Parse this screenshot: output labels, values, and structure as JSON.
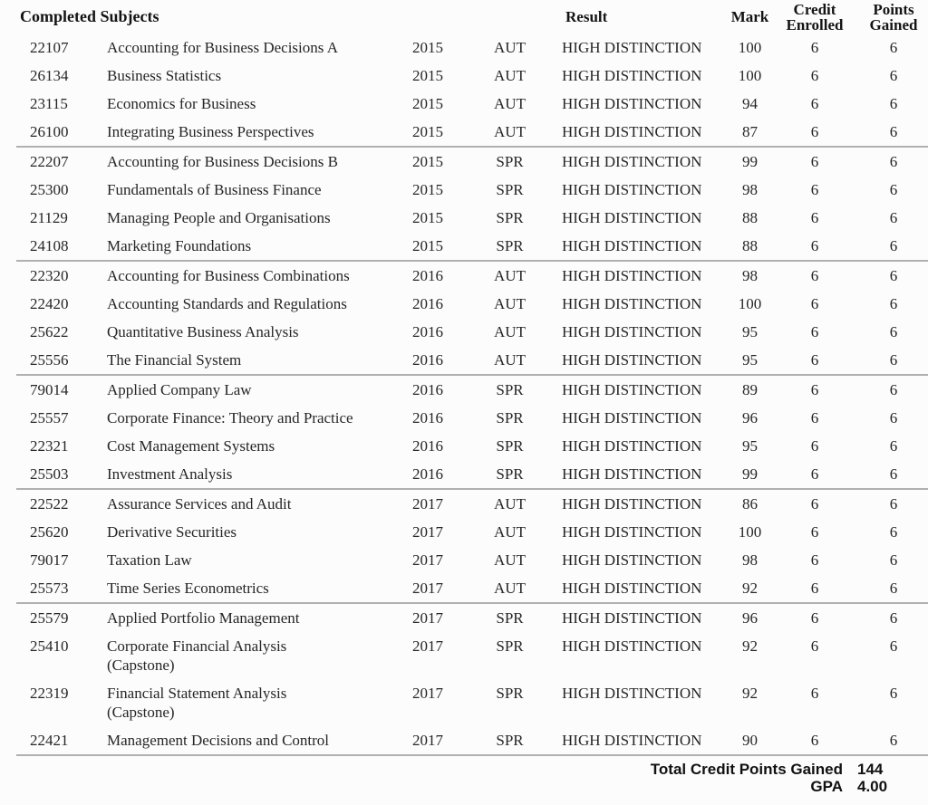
{
  "table": {
    "title": "Completed Subjects",
    "columns": {
      "result": "Result",
      "mark": "Mark",
      "credit_line1": "Credit",
      "credit_line2": "Enrolled",
      "points_line1": "Points",
      "points_line2": "Gained"
    },
    "groups": [
      {
        "rows": [
          {
            "code": "22107",
            "name": "Accounting for Business Decisions A",
            "year": "2015",
            "session": "AUT",
            "result": "HIGH DISTINCTION",
            "mark": "100",
            "credit": "6",
            "points": "6"
          },
          {
            "code": "26134",
            "name": "Business Statistics",
            "year": "2015",
            "session": "AUT",
            "result": "HIGH DISTINCTION",
            "mark": "100",
            "credit": "6",
            "points": "6"
          },
          {
            "code": "23115",
            "name": "Economics for Business",
            "year": "2015",
            "session": "AUT",
            "result": "HIGH DISTINCTION",
            "mark": "94",
            "credit": "6",
            "points": "6"
          },
          {
            "code": "26100",
            "name": "Integrating Business Perspectives",
            "year": "2015",
            "session": "AUT",
            "result": "HIGH DISTINCTION",
            "mark": "87",
            "credit": "6",
            "points": "6"
          }
        ]
      },
      {
        "rows": [
          {
            "code": "22207",
            "name": "Accounting for Business Decisions B",
            "year": "2015",
            "session": "SPR",
            "result": "HIGH DISTINCTION",
            "mark": "99",
            "credit": "6",
            "points": "6"
          },
          {
            "code": "25300",
            "name": "Fundamentals of Business Finance",
            "year": "2015",
            "session": "SPR",
            "result": "HIGH DISTINCTION",
            "mark": "98",
            "credit": "6",
            "points": "6"
          },
          {
            "code": "21129",
            "name": "Managing People and Organisations",
            "year": "2015",
            "session": "SPR",
            "result": "HIGH DISTINCTION",
            "mark": "88",
            "credit": "6",
            "points": "6"
          },
          {
            "code": "24108",
            "name": "Marketing Foundations",
            "year": "2015",
            "session": "SPR",
            "result": "HIGH DISTINCTION",
            "mark": "88",
            "credit": "6",
            "points": "6"
          }
        ]
      },
      {
        "rows": [
          {
            "code": "22320",
            "name": "Accounting for Business Combinations",
            "year": "2016",
            "session": "AUT",
            "result": "HIGH DISTINCTION",
            "mark": "98",
            "credit": "6",
            "points": "6"
          },
          {
            "code": "22420",
            "name": "Accounting Standards and Regulations",
            "year": "2016",
            "session": "AUT",
            "result": "HIGH DISTINCTION",
            "mark": "100",
            "credit": "6",
            "points": "6"
          },
          {
            "code": "25622",
            "name": "Quantitative Business Analysis",
            "year": "2016",
            "session": "AUT",
            "result": "HIGH DISTINCTION",
            "mark": "95",
            "credit": "6",
            "points": "6"
          },
          {
            "code": "25556",
            "name": "The Financial System",
            "year": "2016",
            "session": "AUT",
            "result": "HIGH DISTINCTION",
            "mark": "95",
            "credit": "6",
            "points": "6"
          }
        ]
      },
      {
        "rows": [
          {
            "code": "79014",
            "name": "Applied Company Law",
            "year": "2016",
            "session": "SPR",
            "result": "HIGH DISTINCTION",
            "mark": "89",
            "credit": "6",
            "points": "6"
          },
          {
            "code": "25557",
            "name": "Corporate Finance: Theory and Practice",
            "year": "2016",
            "session": "SPR",
            "result": "HIGH DISTINCTION",
            "mark": "96",
            "credit": "6",
            "points": "6"
          },
          {
            "code": "22321",
            "name": "Cost Management Systems",
            "year": "2016",
            "session": "SPR",
            "result": "HIGH DISTINCTION",
            "mark": "95",
            "credit": "6",
            "points": "6"
          },
          {
            "code": "25503",
            "name": "Investment Analysis",
            "year": "2016",
            "session": "SPR",
            "result": "HIGH DISTINCTION",
            "mark": "99",
            "credit": "6",
            "points": "6"
          }
        ]
      },
      {
        "rows": [
          {
            "code": "22522",
            "name": "Assurance Services and Audit",
            "year": "2017",
            "session": "AUT",
            "result": "HIGH DISTINCTION",
            "mark": "86",
            "credit": "6",
            "points": "6"
          },
          {
            "code": "25620",
            "name": "Derivative Securities",
            "year": "2017",
            "session": "AUT",
            "result": "HIGH DISTINCTION",
            "mark": "100",
            "credit": "6",
            "points": "6"
          },
          {
            "code": "79017",
            "name": "Taxation Law",
            "year": "2017",
            "session": "AUT",
            "result": "HIGH DISTINCTION",
            "mark": "98",
            "credit": "6",
            "points": "6"
          },
          {
            "code": "25573",
            "name": "Time Series Econometrics",
            "year": "2017",
            "session": "AUT",
            "result": "HIGH DISTINCTION",
            "mark": "92",
            "credit": "6",
            "points": "6"
          }
        ]
      },
      {
        "rows": [
          {
            "code": "25579",
            "name": "Applied Portfolio Management",
            "year": "2017",
            "session": "SPR",
            "result": "HIGH DISTINCTION",
            "mark": "96",
            "credit": "6",
            "points": "6"
          },
          {
            "code": "25410",
            "name": "Corporate Financial Analysis",
            "name_line2": "(Capstone)",
            "year": "2017",
            "session": "SPR",
            "result": "HIGH DISTINCTION",
            "mark": "92",
            "credit": "6",
            "points": "6"
          },
          {
            "code": "22319",
            "name": "Financial Statement Analysis",
            "name_line2": "(Capstone)",
            "year": "2017",
            "session": "SPR",
            "result": "HIGH DISTINCTION",
            "mark": "92",
            "credit": "6",
            "points": "6"
          },
          {
            "code": "22421",
            "name": "Management Decisions and Control",
            "year": "2017",
            "session": "SPR",
            "result": "HIGH DISTINCTION",
            "mark": "90",
            "credit": "6",
            "points": "6"
          }
        ]
      }
    ]
  },
  "summary": {
    "total_label": "Total Credit Points Gained",
    "total_value": "144",
    "gpa_label": "GPA",
    "gpa_value": "4.00"
  },
  "colors": {
    "background": "#fcfcfc",
    "text": "#262626",
    "divider": "#b0b0b0"
  }
}
